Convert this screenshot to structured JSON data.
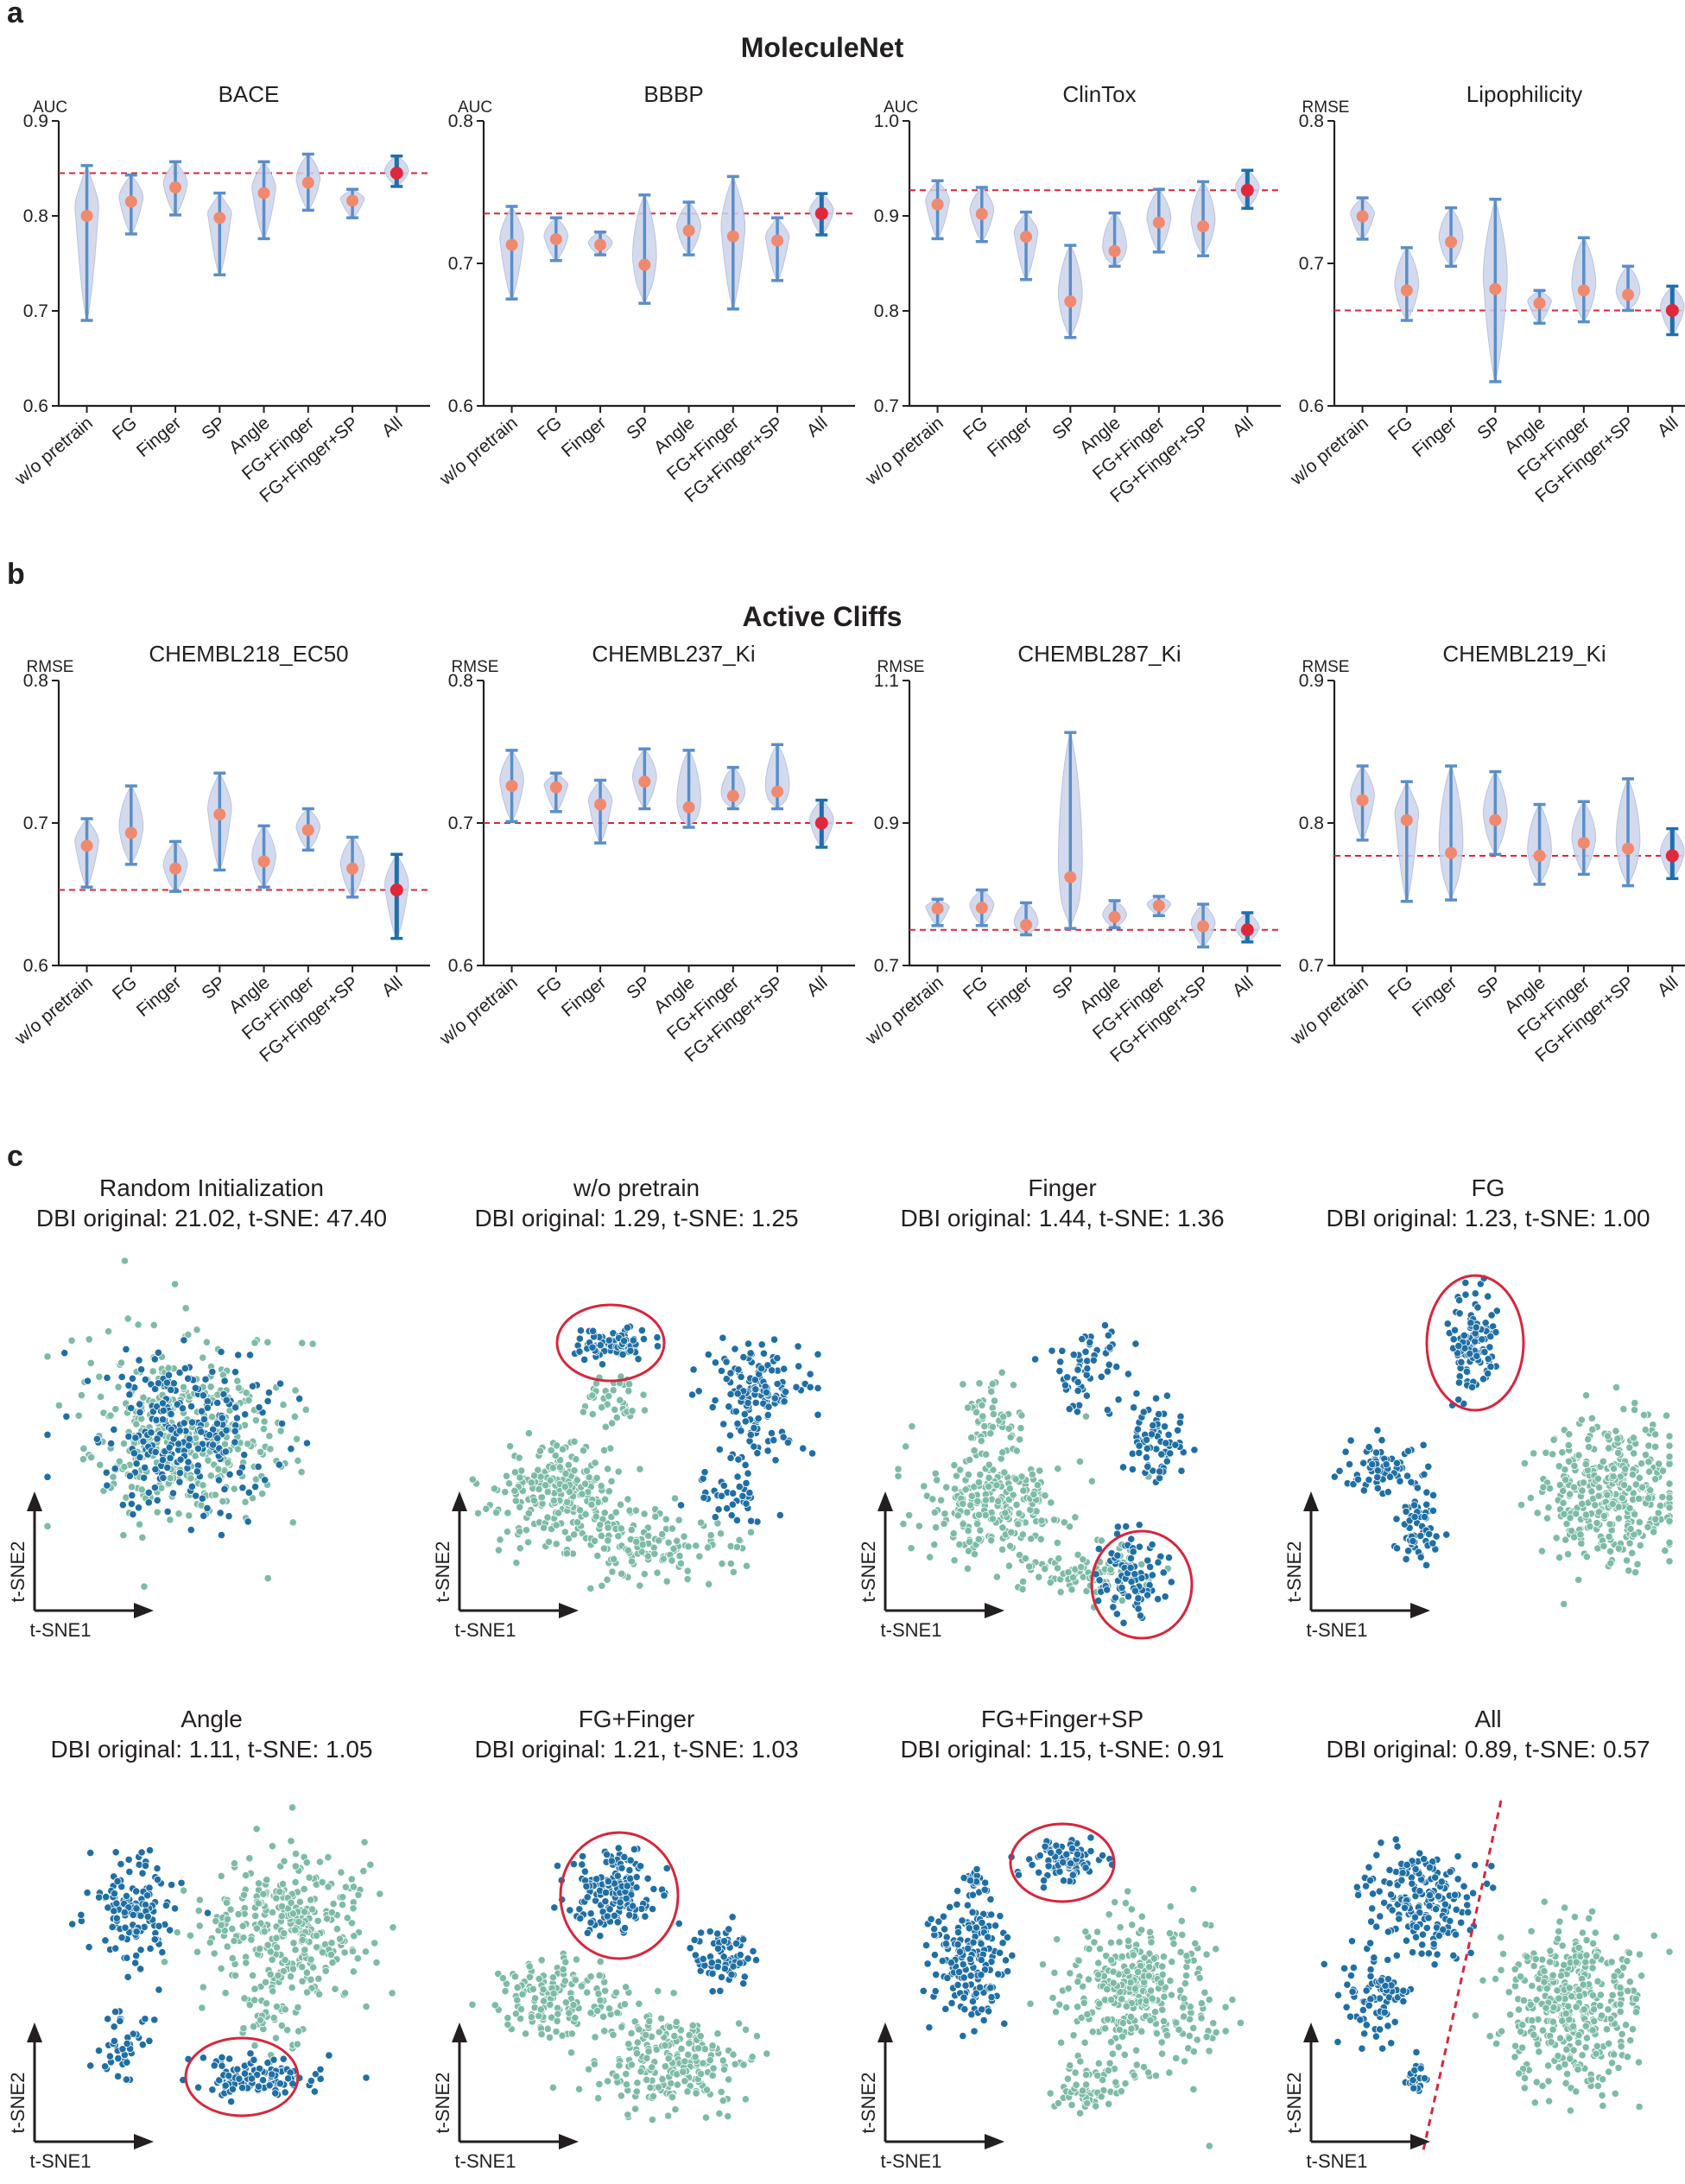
{
  "panels": {
    "a": {
      "letter": "a",
      "heading": "MoleculeNet"
    },
    "b": {
      "letter": "b",
      "heading": "Active Cliffs"
    },
    "c": {
      "letter": "c"
    }
  },
  "colors": {
    "violin_fill": "#ccd4ea",
    "whisker": "#5b8ec9",
    "all_whisker": "#1f6fae",
    "dot": "#f0896e",
    "all_dot": "#e0283c",
    "ref_line": "#d7263d",
    "cluster_a": "#1f6fa4",
    "cluster_b": "#7dbba7",
    "circle": "#d7263d"
  },
  "chart_data": [
    {
      "id": "bace",
      "type": "violin",
      "title": "BACE",
      "ylabel": "AUC",
      "ylim": [
        0.6,
        0.9
      ],
      "yticks": [
        "0.6",
        "0.7",
        "0.8",
        "0.9"
      ],
      "categories": [
        "w/o pretrain",
        "FG",
        "Finger",
        "SP",
        "Angle",
        "FG+Finger",
        "FG+Finger+SP",
        "All"
      ],
      "mean": [
        0.8,
        0.815,
        0.83,
        0.798,
        0.824,
        0.835,
        0.816,
        0.845
      ],
      "low": [
        0.69,
        0.781,
        0.801,
        0.738,
        0.776,
        0.806,
        0.798,
        0.831
      ],
      "high": [
        0.853,
        0.843,
        0.857,
        0.824,
        0.857,
        0.865,
        0.828,
        0.863
      ],
      "reference": 0.845
    },
    {
      "id": "bbbp",
      "type": "violin",
      "title": "BBBP",
      "ylabel": "AUC",
      "ylim": [
        0.6,
        0.8
      ],
      "yticks": [
        "0.6",
        "0.7",
        "0.8"
      ],
      "categories": [
        "w/o pretrain",
        "FG",
        "Finger",
        "SP",
        "Angle",
        "FG+Finger",
        "FG+Finger+SP",
        "All"
      ],
      "mean": [
        0.713,
        0.717,
        0.713,
        0.699,
        0.723,
        0.719,
        0.716,
        0.735
      ],
      "low": [
        0.675,
        0.702,
        0.706,
        0.672,
        0.706,
        0.668,
        0.688,
        0.72
      ],
      "high": [
        0.74,
        0.732,
        0.722,
        0.748,
        0.743,
        0.761,
        0.732,
        0.749
      ],
      "reference": 0.735
    },
    {
      "id": "clintox",
      "type": "violin",
      "title": "ClinTox",
      "ylabel": "AUC",
      "ylim": [
        0.7,
        1.0
      ],
      "yticks": [
        "0.7",
        "0.8",
        "0.9",
        "1.0"
      ],
      "categories": [
        "w/o pretrain",
        "FG",
        "Finger",
        "SP",
        "Angle",
        "FG+Finger",
        "FG+Finger+SP",
        "All"
      ],
      "mean": [
        0.912,
        0.902,
        0.878,
        0.81,
        0.863,
        0.893,
        0.889,
        0.927
      ],
      "low": [
        0.876,
        0.873,
        0.833,
        0.772,
        0.847,
        0.862,
        0.858,
        0.908
      ],
      "high": [
        0.937,
        0.93,
        0.904,
        0.869,
        0.903,
        0.928,
        0.936,
        0.948
      ],
      "reference": 0.927
    },
    {
      "id": "lipo",
      "type": "violin",
      "title": "Lipophilicity",
      "ylabel": "RMSE",
      "ylim": [
        0.6,
        0.8
      ],
      "yticks": [
        "0.6",
        "0.7",
        "0.8"
      ],
      "categories": [
        "w/o pretrain",
        "FG",
        "Finger",
        "SP",
        "Angle",
        "FG+Finger",
        "FG+Finger+SP",
        "All"
      ],
      "mean": [
        0.733,
        0.681,
        0.715,
        0.682,
        0.672,
        0.681,
        0.678,
        0.667
      ],
      "low": [
        0.717,
        0.66,
        0.698,
        0.617,
        0.658,
        0.659,
        0.667,
        0.65
      ],
      "high": [
        0.746,
        0.711,
        0.739,
        0.745,
        0.681,
        0.718,
        0.698,
        0.684
      ],
      "reference": 0.667
    },
    {
      "id": "c218",
      "type": "violin",
      "title": "CHEMBL218_EC50",
      "ylabel": "RMSE",
      "ylim": [
        0.6,
        0.8
      ],
      "yticks": [
        "0.6",
        "0.7",
        "0.8"
      ],
      "categories": [
        "w/o pretrain",
        "FG",
        "Finger",
        "SP",
        "Angle",
        "FG+Finger",
        "FG+Finger+SP",
        "All"
      ],
      "mean": [
        0.684,
        0.693,
        0.668,
        0.706,
        0.673,
        0.695,
        0.668,
        0.653
      ],
      "low": [
        0.655,
        0.671,
        0.652,
        0.667,
        0.655,
        0.681,
        0.648,
        0.619
      ],
      "high": [
        0.703,
        0.726,
        0.687,
        0.735,
        0.698,
        0.71,
        0.69,
        0.678
      ],
      "reference": 0.653
    },
    {
      "id": "c237",
      "type": "violin",
      "title": "CHEMBL237_Ki",
      "ylabel": "RMSE",
      "ylim": [
        0.6,
        0.8
      ],
      "yticks": [
        "0.6",
        "0.7",
        "0.8"
      ],
      "categories": [
        "w/o pretrain",
        "FG",
        "Finger",
        "SP",
        "Angle",
        "FG+Finger",
        "FG+Finger+SP",
        "All"
      ],
      "mean": [
        0.726,
        0.725,
        0.713,
        0.729,
        0.711,
        0.719,
        0.722,
        0.7
      ],
      "low": [
        0.701,
        0.708,
        0.686,
        0.71,
        0.697,
        0.71,
        0.71,
        0.683
      ],
      "high": [
        0.751,
        0.735,
        0.73,
        0.752,
        0.751,
        0.739,
        0.755,
        0.716
      ],
      "reference": 0.7
    },
    {
      "id": "c287",
      "type": "violin",
      "title": "CHEMBL287_Ki",
      "ylabel": "RMSE",
      "ylim": [
        0.7,
        1.1
      ],
      "yticks": [
        "0.7",
        "0.9",
        "1.1"
      ],
      "categories": [
        "w/o pretrain",
        "FG",
        "Finger",
        "SP",
        "Angle",
        "FG+Finger",
        "FG+Finger+SP",
        "All"
      ],
      "mean": [
        0.78,
        0.781,
        0.757,
        0.824,
        0.768,
        0.784,
        0.755,
        0.75
      ],
      "low": [
        0.756,
        0.756,
        0.743,
        0.752,
        0.753,
        0.77,
        0.726,
        0.733
      ],
      "high": [
        0.793,
        0.806,
        0.788,
        1.027,
        0.791,
        0.797,
        0.786,
        0.774
      ],
      "reference": 0.75
    },
    {
      "id": "c219",
      "type": "violin",
      "title": "CHEMBL219_Ki",
      "ylabel": "RMSE",
      "ylim": [
        0.7,
        0.9
      ],
      "yticks": [
        "0.7",
        "0.8",
        "0.9"
      ],
      "categories": [
        "w/o pretrain",
        "FG",
        "Finger",
        "SP",
        "Angle",
        "FG+Finger",
        "FG+Finger+SP",
        "All"
      ],
      "mean": [
        0.816,
        0.802,
        0.779,
        0.802,
        0.777,
        0.786,
        0.782,
        0.777
      ],
      "low": [
        0.788,
        0.745,
        0.746,
        0.778,
        0.757,
        0.764,
        0.756,
        0.761
      ],
      "high": [
        0.84,
        0.829,
        0.84,
        0.836,
        0.813,
        0.815,
        0.831,
        0.796
      ],
      "reference": 0.777
    },
    {
      "id": "tsne",
      "type": "scatter",
      "xlabel": "t-SNE1",
      "ylabel": "t-SNE2",
      "panels": [
        {
          "title": "Random Initialization",
          "dbi": "DBI original:  21.02, t-SNE: 47.40"
        },
        {
          "title": "w/o pretrain",
          "dbi": "DBI original:  1.29, t-SNE: 1.25"
        },
        {
          "title": "Finger",
          "dbi": "DBI original:  1.44, t-SNE: 1.36"
        },
        {
          "title": "FG",
          "dbi": "DBI original:  1.23, t-SNE: 1.00"
        },
        {
          "title": "Angle",
          "dbi": "DBI original:  1.11, t-SNE: 1.05"
        },
        {
          "title": "FG+Finger",
          "dbi": "DBI original:  1.21, t-SNE: 1.03"
        },
        {
          "title": "FG+Finger+SP",
          "dbi": "DBI original:  1.15, t-SNE: 0.91"
        },
        {
          "title": "All",
          "dbi": "DBI original:  0.89, t-SNE: 0.57"
        }
      ]
    }
  ]
}
